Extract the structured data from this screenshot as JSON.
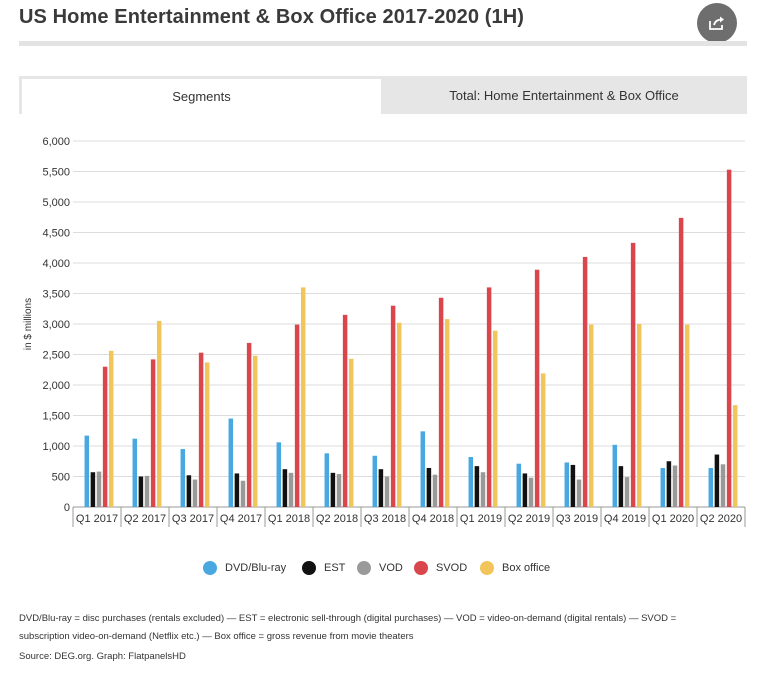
{
  "title": "US Home Entertainment & Box Office 2017-2020 (1H)",
  "share_icon": "share-icon",
  "tabs": [
    {
      "label": "Segments",
      "active": true
    },
    {
      "label": "Total: Home Entertainment & Box Office",
      "active": false
    }
  ],
  "colors": {
    "DVD/Blu-ray": "#4aa8e0",
    "EST": "#111111",
    "VOD": "#9a9a9a",
    "SVOD": "#d9474c",
    "Box office": "#f2c55a"
  },
  "chart_data": {
    "type": "bar",
    "ylabel": "in $ millions",
    "xlabel": "",
    "ylim": [
      0,
      6000
    ],
    "yticks": [
      0,
      500,
      1000,
      1500,
      2000,
      2500,
      3000,
      3500,
      4000,
      4500,
      5000,
      5500,
      6000
    ],
    "ytick_labels": [
      "0",
      "500",
      "1,000",
      "1,500",
      "2,000",
      "2,500",
      "3,000",
      "3,500",
      "4,000",
      "4,500",
      "5,000",
      "5,500",
      "6,000"
    ],
    "grid": true,
    "legend_position": "bottom-center",
    "categories": [
      "Q1 2017",
      "Q2 2017",
      "Q3 2017",
      "Q4 2017",
      "Q1 2018",
      "Q2 2018",
      "Q3 2018",
      "Q4 2018",
      "Q1 2019",
      "Q2 2019",
      "Q3 2019",
      "Q4 2019",
      "Q1 2020",
      "Q2 2020"
    ],
    "series": [
      {
        "name": "DVD/Blu-ray",
        "values": [
          1170,
          1120,
          950,
          1450,
          1060,
          880,
          840,
          1240,
          820,
          710,
          730,
          1020,
          640,
          640
        ]
      },
      {
        "name": "EST",
        "values": [
          570,
          500,
          520,
          550,
          620,
          560,
          620,
          640,
          670,
          550,
          690,
          670,
          750,
          860
        ]
      },
      {
        "name": "VOD",
        "values": [
          580,
          510,
          450,
          430,
          560,
          540,
          500,
          530,
          570,
          480,
          450,
          490,
          680,
          700
        ]
      },
      {
        "name": "SVOD",
        "values": [
          2300,
          2420,
          2530,
          2690,
          2990,
          3150,
          3300,
          3430,
          3600,
          3890,
          4100,
          4330,
          4740,
          5530
        ]
      },
      {
        "name": "Box office",
        "values": [
          2560,
          3050,
          2370,
          2480,
          3600,
          2430,
          3020,
          3080,
          2890,
          2190,
          2990,
          3000,
          2990,
          1670
        ]
      }
    ]
  },
  "footnote": {
    "line1": "DVD/Blu-ray = disc purchases (rentals excluded) — EST = electronic sell-through (digital purchases) — VOD = video-on-demand (digital rentals) — SVOD =",
    "line2": "subscription video-on-demand (Netflix etc.) — Box office = gross revenue from movie theaters",
    "source": "Source: DEG.org. Graph: FlatpanelsHD"
  }
}
